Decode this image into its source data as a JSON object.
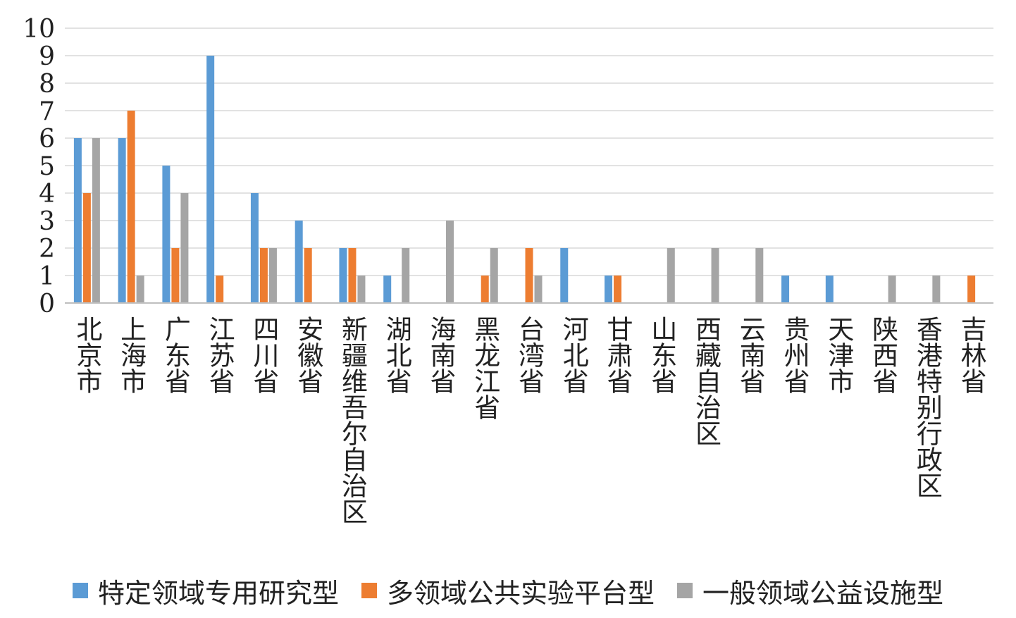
{
  "chart_data": {
    "type": "bar",
    "title": "",
    "xlabel": "",
    "ylabel": "",
    "ylim": [
      0,
      10
    ],
    "yticks": [
      0,
      1,
      2,
      3,
      4,
      5,
      6,
      7,
      8,
      9,
      10
    ],
    "grid": true,
    "legend_position": "bottom",
    "categories": [
      "北京市",
      "上海市",
      "广东省",
      "江苏省",
      "四川省",
      "安徽省",
      "新疆维吾尔自治区",
      "湖北省",
      "海南省",
      "黑龙江省",
      "台湾省",
      "河北省",
      "甘肃省",
      "山东省",
      "西藏自治区",
      "云南省",
      "贵州省",
      "天津市",
      "陕西省",
      "香港特别行政区",
      "吉林省"
    ],
    "series": [
      {
        "name": "特定领域专用研究型",
        "color": "#5b9bd5",
        "values": [
          6,
          6,
          5,
          9,
          4,
          3,
          2,
          1,
          0,
          0,
          0,
          2,
          1,
          0,
          0,
          0,
          1,
          1,
          0,
          0,
          0
        ]
      },
      {
        "name": "多领域公共实验平台型",
        "color": "#ed7d31",
        "values": [
          4,
          7,
          2,
          1,
          2,
          2,
          2,
          0,
          0,
          1,
          2,
          0,
          1,
          0,
          0,
          0,
          0,
          0,
          0,
          0,
          1
        ]
      },
      {
        "name": "一般领域公益设施型",
        "color": "#a5a5a5",
        "values": [
          6,
          1,
          4,
          0,
          2,
          0,
          1,
          2,
          3,
          2,
          1,
          0,
          0,
          2,
          2,
          2,
          0,
          0,
          1,
          1,
          0
        ]
      }
    ]
  }
}
